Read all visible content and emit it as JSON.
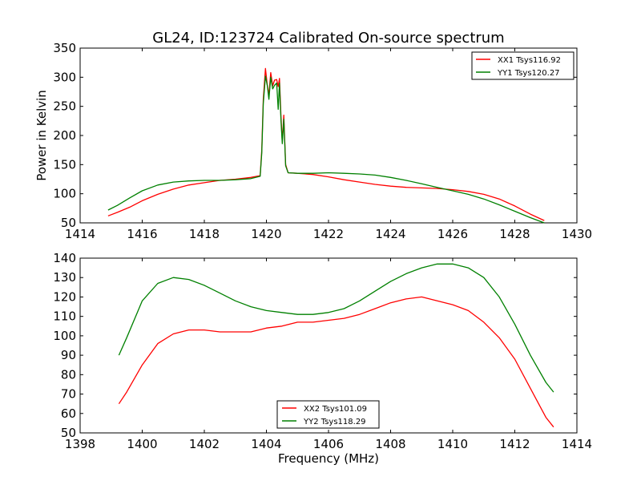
{
  "chart_data": [
    {
      "type": "line",
      "title": "GL24, ID:123724 Calibrated On-source spectrum",
      "xlabel": "",
      "ylabel": "Power in Kelvin",
      "xlim": [
        1414,
        1430
      ],
      "ylim": [
        50,
        350
      ],
      "xticks": [
        1414,
        1416,
        1418,
        1420,
        1422,
        1424,
        1426,
        1428,
        1430
      ],
      "yticks": [
        50,
        100,
        150,
        200,
        250,
        300,
        350
      ],
      "grid": false,
      "legend_position": "top-right",
      "series": [
        {
          "name": "XX1 Tsys116.92",
          "color": "#ff0000",
          "points": [
            [
              1414.9,
              62
            ],
            [
              1415.2,
              68
            ],
            [
              1415.6,
              77
            ],
            [
              1416.0,
              88
            ],
            [
              1416.5,
              99
            ],
            [
              1417.0,
              108
            ],
            [
              1417.5,
              115
            ],
            [
              1418.0,
              119
            ],
            [
              1418.5,
              123
            ],
            [
              1419.0,
              125
            ],
            [
              1419.5,
              128
            ],
            [
              1419.8,
              131
            ],
            [
              1419.85,
              175
            ],
            [
              1419.9,
              262
            ],
            [
              1419.97,
              315
            ],
            [
              1420.03,
              285
            ],
            [
              1420.08,
              270
            ],
            [
              1420.14,
              308
            ],
            [
              1420.2,
              285
            ],
            [
              1420.26,
              295
            ],
            [
              1420.33,
              296
            ],
            [
              1420.38,
              284
            ],
            [
              1420.42,
              298
            ],
            [
              1420.47,
              232
            ],
            [
              1420.51,
              190
            ],
            [
              1420.56,
              235
            ],
            [
              1420.62,
              150
            ],
            [
              1420.7,
              136
            ],
            [
              1421.0,
              135
            ],
            [
              1421.5,
              133
            ],
            [
              1422.0,
              129
            ],
            [
              1422.5,
              124
            ],
            [
              1423.0,
              120
            ],
            [
              1423.5,
              116
            ],
            [
              1424.0,
              113
            ],
            [
              1424.5,
              111
            ],
            [
              1425.0,
              110
            ],
            [
              1425.5,
              109
            ],
            [
              1426.0,
              107
            ],
            [
              1426.5,
              104
            ],
            [
              1427.0,
              99
            ],
            [
              1427.5,
              91
            ],
            [
              1428.0,
              79
            ],
            [
              1428.5,
              65
            ],
            [
              1428.95,
              54
            ]
          ]
        },
        {
          "name": "YY1 Tsys120.27",
          "color": "#008000",
          "points": [
            [
              1414.9,
              72
            ],
            [
              1415.2,
              80
            ],
            [
              1415.6,
              93
            ],
            [
              1416.0,
              105
            ],
            [
              1416.5,
              115
            ],
            [
              1417.0,
              120
            ],
            [
              1417.5,
              122
            ],
            [
              1418.0,
              123
            ],
            [
              1418.5,
              123
            ],
            [
              1419.0,
              124
            ],
            [
              1419.5,
              126
            ],
            [
              1419.8,
              130
            ],
            [
              1419.85,
              170
            ],
            [
              1419.9,
              255
            ],
            [
              1419.97,
              302
            ],
            [
              1420.03,
              285
            ],
            [
              1420.08,
              262
            ],
            [
              1420.14,
              300
            ],
            [
              1420.2,
              280
            ],
            [
              1420.26,
              286
            ],
            [
              1420.33,
              290
            ],
            [
              1420.38,
              245
            ],
            [
              1420.42,
              290
            ],
            [
              1420.47,
              225
            ],
            [
              1420.51,
              186
            ],
            [
              1420.56,
              228
            ],
            [
              1420.62,
              148
            ],
            [
              1420.7,
              136
            ],
            [
              1421.0,
              135
            ],
            [
              1421.5,
              135
            ],
            [
              1422.0,
              136
            ],
            [
              1422.5,
              135
            ],
            [
              1423.0,
              134
            ],
            [
              1423.5,
              132
            ],
            [
              1424.0,
              128
            ],
            [
              1424.5,
              123
            ],
            [
              1425.0,
              117
            ],
            [
              1425.5,
              111
            ],
            [
              1426.0,
              105
            ],
            [
              1426.5,
              99
            ],
            [
              1427.0,
              91
            ],
            [
              1427.5,
              81
            ],
            [
              1428.0,
              70
            ],
            [
              1428.5,
              59
            ],
            [
              1428.95,
              50
            ]
          ]
        }
      ]
    },
    {
      "type": "line",
      "title": "",
      "xlabel": "Frequency (MHz)",
      "ylabel": "",
      "xlim": [
        1398,
        1414
      ],
      "ylim": [
        50,
        140
      ],
      "xticks": [
        1398,
        1400,
        1402,
        1404,
        1406,
        1408,
        1410,
        1412,
        1414
      ],
      "yticks": [
        50,
        60,
        70,
        80,
        90,
        100,
        110,
        120,
        130,
        140
      ],
      "grid": false,
      "legend_position": "bottom-center",
      "series": [
        {
          "name": "XX2 Tsys101.09",
          "color": "#ff0000",
          "points": [
            [
              1399.25,
              65
            ],
            [
              1399.5,
              71
            ],
            [
              1400.0,
              85
            ],
            [
              1400.5,
              96
            ],
            [
              1401.0,
              101
            ],
            [
              1401.5,
              103
            ],
            [
              1402.0,
              103
            ],
            [
              1402.5,
              102
            ],
            [
              1403.0,
              102
            ],
            [
              1403.5,
              102
            ],
            [
              1404.0,
              104
            ],
            [
              1404.5,
              105
            ],
            [
              1405.0,
              107
            ],
            [
              1405.5,
              107
            ],
            [
              1406.0,
              108
            ],
            [
              1406.5,
              109
            ],
            [
              1407.0,
              111
            ],
            [
              1407.5,
              114
            ],
            [
              1408.0,
              117
            ],
            [
              1408.5,
              119
            ],
            [
              1409.0,
              120
            ],
            [
              1409.5,
              118
            ],
            [
              1410.0,
              116
            ],
            [
              1410.5,
              113
            ],
            [
              1411.0,
              107
            ],
            [
              1411.5,
              99
            ],
            [
              1412.0,
              88
            ],
            [
              1412.5,
              73
            ],
            [
              1413.0,
              58
            ],
            [
              1413.25,
              53
            ]
          ]
        },
        {
          "name": "YY2 Tsys118.29",
          "color": "#008000",
          "points": [
            [
              1399.25,
              90
            ],
            [
              1399.5,
              99
            ],
            [
              1400.0,
              118
            ],
            [
              1400.5,
              127
            ],
            [
              1401.0,
              130
            ],
            [
              1401.5,
              129
            ],
            [
              1402.0,
              126
            ],
            [
              1402.5,
              122
            ],
            [
              1403.0,
              118
            ],
            [
              1403.5,
              115
            ],
            [
              1404.0,
              113
            ],
            [
              1404.5,
              112
            ],
            [
              1405.0,
              111
            ],
            [
              1405.5,
              111
            ],
            [
              1406.0,
              112
            ],
            [
              1406.5,
              114
            ],
            [
              1407.0,
              118
            ],
            [
              1407.5,
              123
            ],
            [
              1408.0,
              128
            ],
            [
              1408.5,
              132
            ],
            [
              1409.0,
              135
            ],
            [
              1409.5,
              137
            ],
            [
              1410.0,
              137
            ],
            [
              1410.5,
              135
            ],
            [
              1411.0,
              130
            ],
            [
              1411.5,
              120
            ],
            [
              1412.0,
              106
            ],
            [
              1412.5,
              90
            ],
            [
              1413.0,
              76
            ],
            [
              1413.25,
              71
            ]
          ]
        }
      ]
    }
  ]
}
